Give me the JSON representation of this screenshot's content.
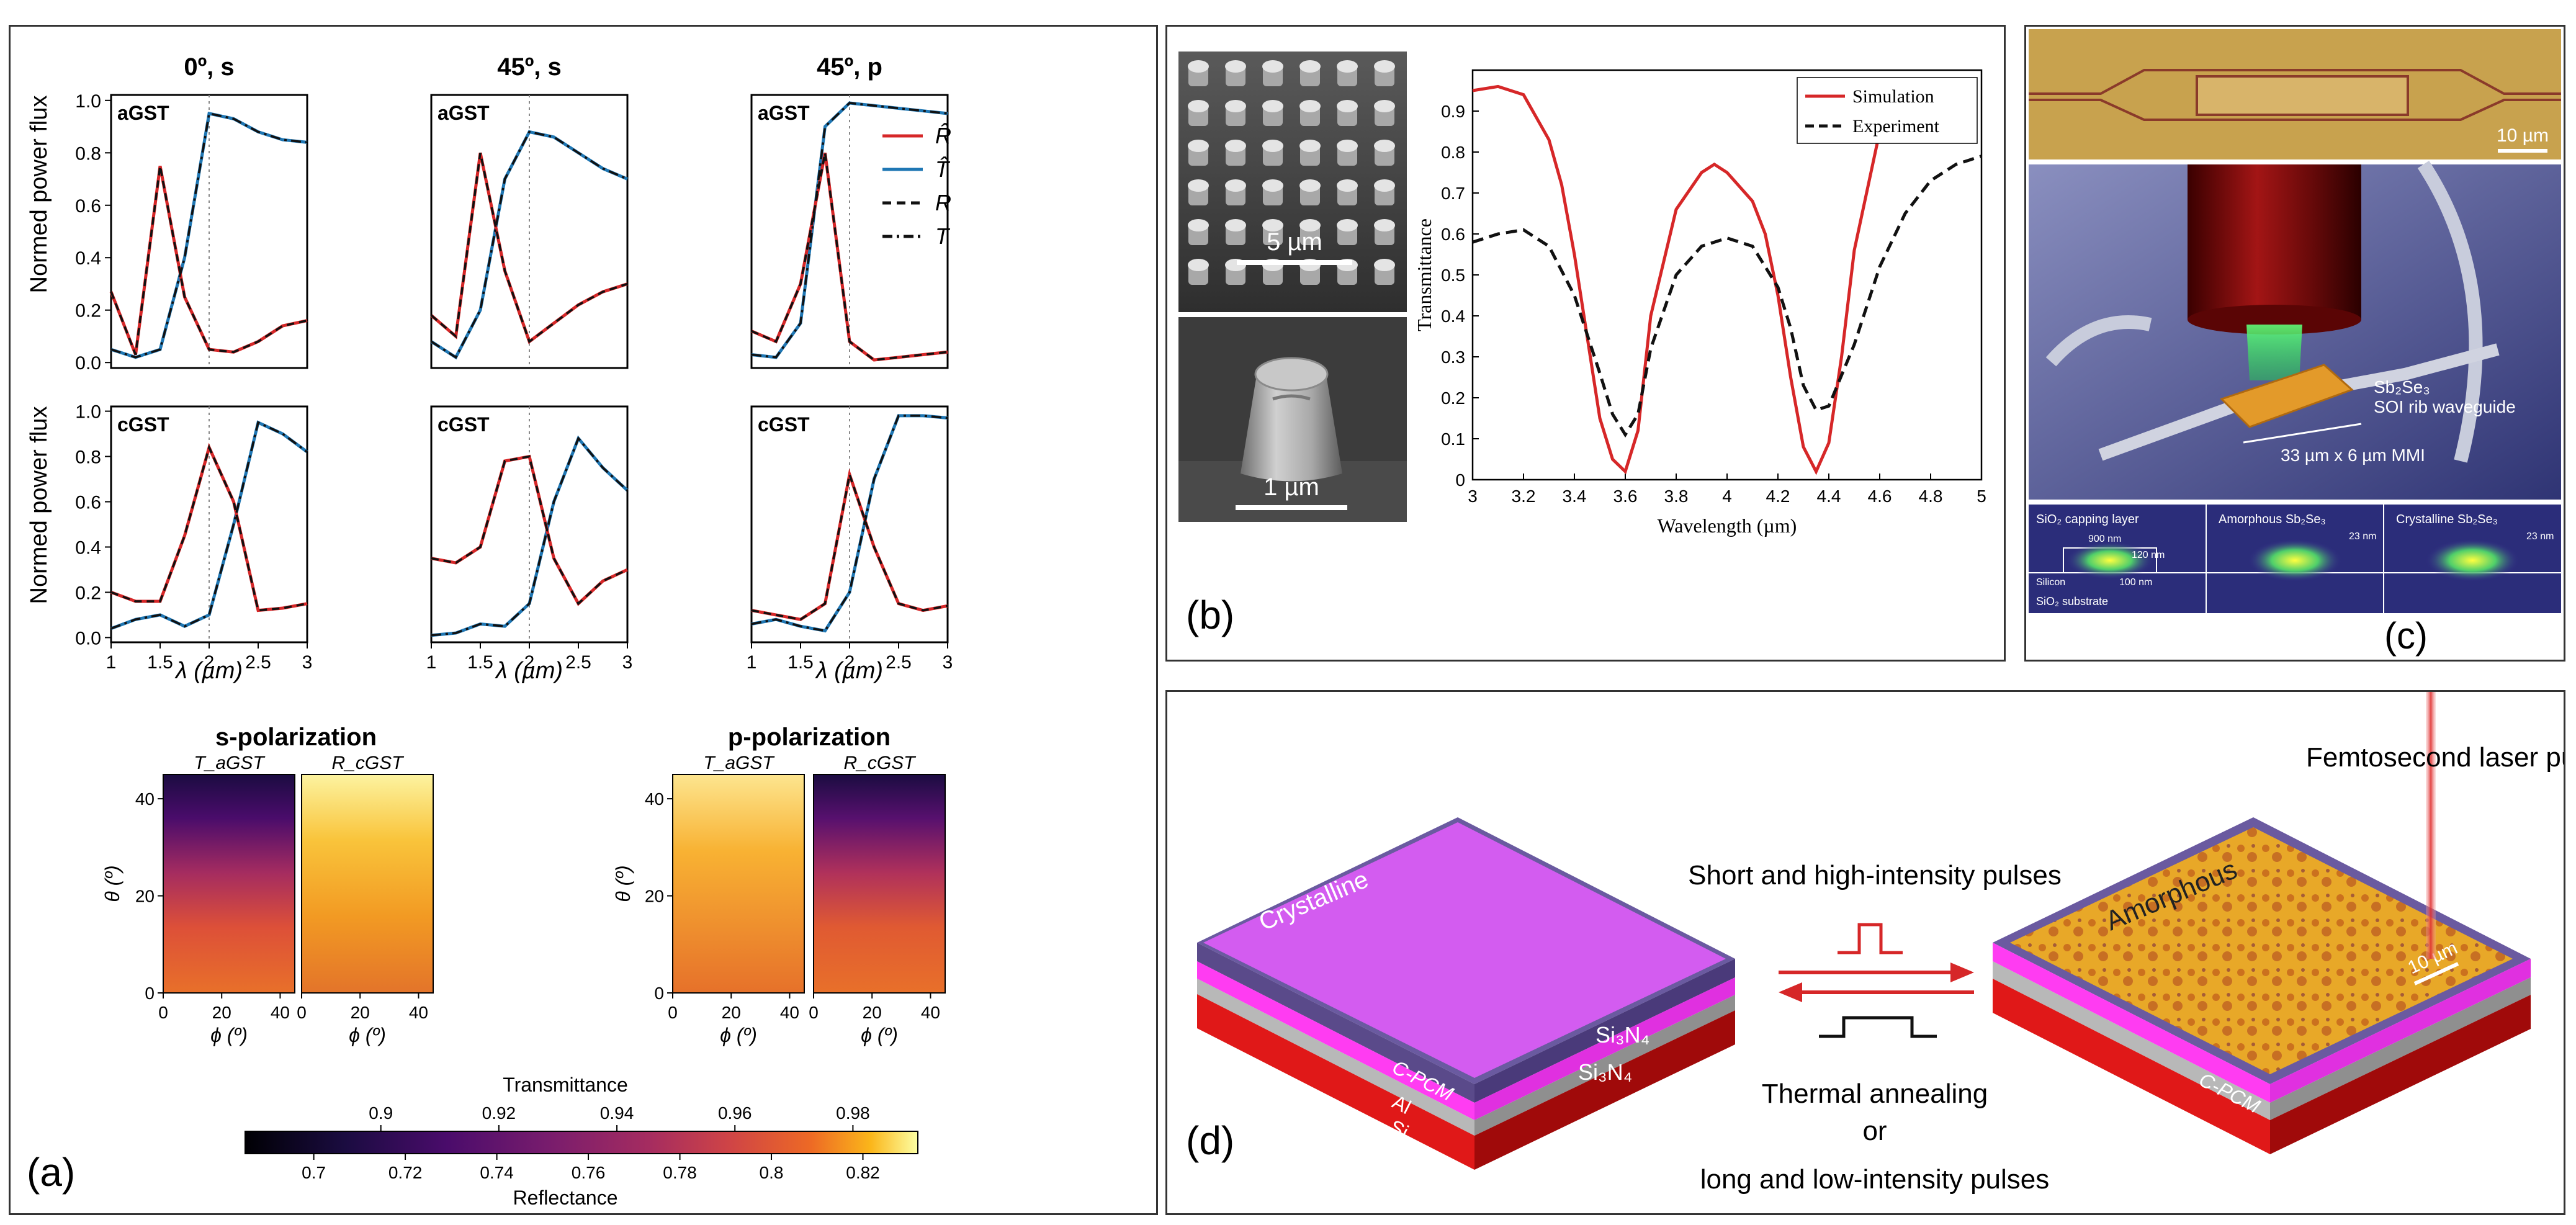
{
  "panel_a": {
    "label": "(a)",
    "columns": [
      "0º, s",
      "45º, s",
      "45º, p"
    ],
    "row_labels": [
      "aGST",
      "cGST"
    ],
    "ylabel": "Normed power flux",
    "xlabel": "λ (µm)",
    "xticks": [
      "1",
      "1.5",
      "2",
      "2.5",
      "3"
    ],
    "yticks": [
      "0.0",
      "0.2",
      "0.4",
      "0.6",
      "0.8",
      "1.0"
    ],
    "legend": [
      {
        "label": "R̂",
        "color": "#d62728",
        "style": "solid"
      },
      {
        "label": "T̂",
        "color": "#1f77b4",
        "style": "solid"
      },
      {
        "label": "R",
        "color": "#111111",
        "style": "dashed"
      },
      {
        "label": "T",
        "color": "#111111",
        "style": "dashdot"
      }
    ],
    "heatmaps": {
      "groups": [
        "s-polarization",
        "p-polarization"
      ],
      "titles": [
        "T_aGST",
        "R_cGST",
        "T_aGST",
        "R_cGST"
      ],
      "ylabel": "θ (º)",
      "xlabel": "ϕ (º)",
      "yticks": [
        "0",
        "20",
        "40"
      ],
      "xticks": [
        "0",
        "20",
        "40"
      ]
    },
    "colorbar": {
      "top_label": "Transmittance",
      "top_ticks": [
        "0.9",
        "0.92",
        "0.94",
        "0.96",
        "0.98"
      ],
      "bottom_label": "Reflectance",
      "bottom_ticks": [
        "0.7",
        "0.72",
        "0.74",
        "0.76",
        "0.78",
        "0.8",
        "0.82"
      ]
    }
  },
  "panel_b": {
    "label": "(b)",
    "sem_scale_top": "5 µm",
    "sem_scale_bottom": "1 µm",
    "chart_data": {
      "type": "line",
      "xlabel": "Wavelength (µm)",
      "ylabel": "Transmittance",
      "xlim": [
        3,
        5
      ],
      "ylim": [
        0,
        1
      ],
      "xticks": [
        "3",
        "3.2",
        "3.4",
        "3.6",
        "3.8",
        "4",
        "4.2",
        "4.4",
        "4.6",
        "4.8",
        "5"
      ],
      "yticks": [
        "0",
        "0.1",
        "0.2",
        "0.3",
        "0.4",
        "0.5",
        "0.6",
        "0.7",
        "0.8",
        "0.9"
      ],
      "series": [
        {
          "name": "Simulation",
          "color": "#d62728",
          "style": "solid",
          "x": [
            3.0,
            3.1,
            3.2,
            3.3,
            3.35,
            3.4,
            3.45,
            3.5,
            3.55,
            3.6,
            3.65,
            3.7,
            3.8,
            3.9,
            3.95,
            4.0,
            4.1,
            4.15,
            4.2,
            4.25,
            4.3,
            4.35,
            4.4,
            4.45,
            4.5,
            4.6,
            4.65
          ],
          "y": [
            0.95,
            0.96,
            0.94,
            0.83,
            0.72,
            0.55,
            0.35,
            0.15,
            0.05,
            0.02,
            0.12,
            0.4,
            0.66,
            0.75,
            0.77,
            0.75,
            0.68,
            0.6,
            0.45,
            0.25,
            0.08,
            0.02,
            0.09,
            0.3,
            0.56,
            0.85,
            0.95
          ]
        },
        {
          "name": "Experiment",
          "color": "#111111",
          "style": "dashed",
          "x": [
            3.0,
            3.1,
            3.2,
            3.3,
            3.4,
            3.5,
            3.55,
            3.6,
            3.65,
            3.7,
            3.8,
            3.9,
            4.0,
            4.1,
            4.2,
            4.25,
            4.3,
            4.35,
            4.4,
            4.5,
            4.6,
            4.7,
            4.8,
            4.9,
            5.0
          ],
          "y": [
            0.58,
            0.6,
            0.61,
            0.57,
            0.45,
            0.26,
            0.16,
            0.11,
            0.16,
            0.32,
            0.5,
            0.57,
            0.59,
            0.57,
            0.47,
            0.37,
            0.23,
            0.17,
            0.18,
            0.33,
            0.52,
            0.65,
            0.73,
            0.77,
            0.79
          ]
        }
      ]
    }
  },
  "panel_c": {
    "label": "(c)",
    "scale": "10 µm",
    "annotations": [
      "Sb₂Se₃",
      "SOI rib waveguide",
      "33 µm x 6 µm MMI"
    ],
    "cross_sections": [
      "SiO₂ capping layer",
      "Amorphous Sb₂Se₃",
      "Crystalline Sb₂Se₃"
    ],
    "cs_labels": [
      "900 nm",
      "120 nm",
      "100 nm",
      "Silicon",
      "SiO₂ substrate",
      "23 nm",
      "23 nm"
    ]
  },
  "panel_d": {
    "label": "(d)",
    "laser": "Femtosecond laser pulses",
    "short_pulses": "Short and high-intensity pulses",
    "thermal": "Thermal annealing",
    "or": "or",
    "long_pulses": "long and low-intensity pulses",
    "left_state": "Crystalline",
    "right_state": "Amorphous",
    "layers_left": [
      "Si₃N₄",
      "Si₃N₄",
      "C-PCM",
      "Al",
      "Si"
    ],
    "right_pcm": "C-PCM",
    "scale": "10 µm"
  }
}
